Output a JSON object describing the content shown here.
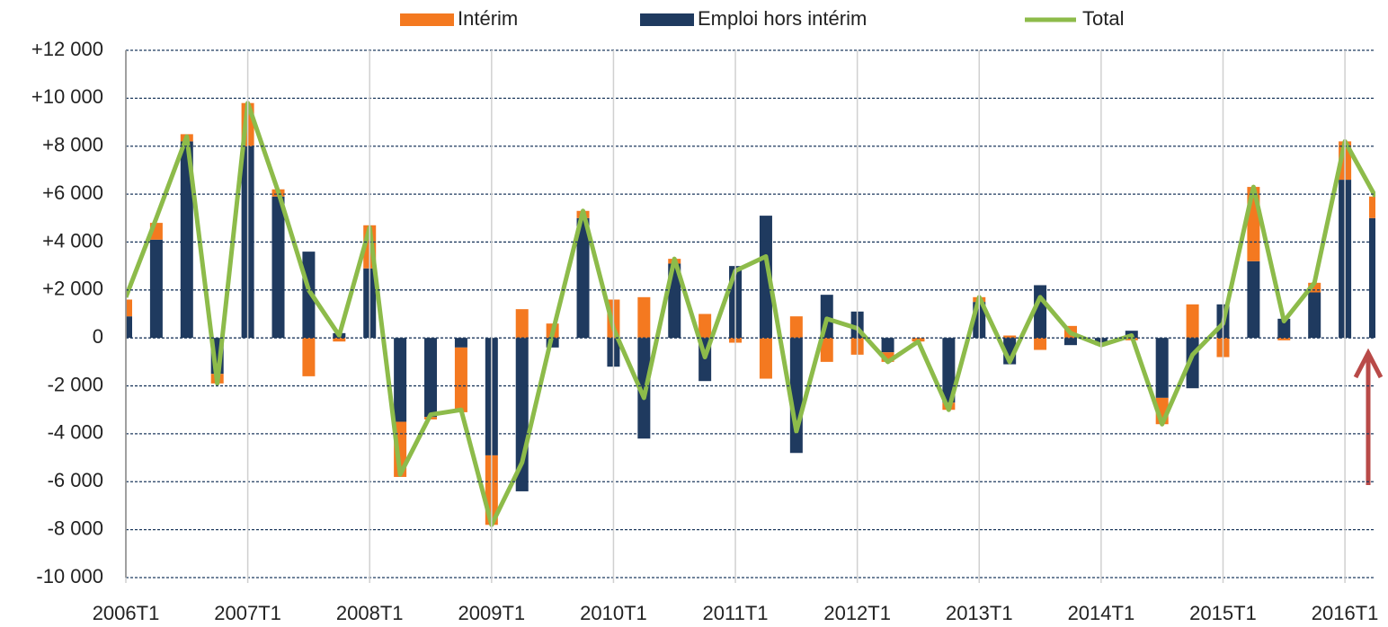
{
  "chart_data": {
    "type": "bar",
    "categories": [
      "2006T1",
      null,
      null,
      null,
      "2007T1",
      null,
      null,
      null,
      "2008T1",
      null,
      null,
      null,
      "2009T1",
      null,
      null,
      null,
      "2010T1",
      null,
      null,
      null,
      "2011T1",
      null,
      null,
      null,
      "2012T1",
      null,
      null,
      null,
      "2013T1",
      null,
      null,
      null,
      "2014T1",
      null,
      null,
      null,
      "2015T1",
      null,
      null,
      null,
      "2016T1",
      null
    ],
    "series": [
      {
        "name": "Intérim",
        "type": "bar",
        "color": "#f47920",
        "values": [
          700,
          700,
          300,
          -400,
          1800,
          300,
          -1600,
          -150,
          1800,
          -2300,
          -100,
          -2700,
          -2900,
          1200,
          600,
          300,
          1600,
          1700,
          200,
          1000,
          -200,
          -1700,
          900,
          -1000,
          -700,
          -400,
          -150,
          -300,
          200,
          100,
          -500,
          500,
          0,
          -100,
          -1100,
          1400,
          -800,
          3100,
          -100,
          400,
          1600,
          900
        ]
      },
      {
        "name": "Emploi hors intérim",
        "type": "bar",
        "color": "#1f3a5f",
        "values": [
          900,
          4100,
          8200,
          -1500,
          8000,
          5900,
          3600,
          200,
          2900,
          -3500,
          -3300,
          -400,
          -4900,
          -6400,
          -400,
          5000,
          -1200,
          -4200,
          3100,
          -1800,
          3000,
          5100,
          -4800,
          1800,
          1100,
          -600,
          0,
          -2700,
          1500,
          -1100,
          2200,
          -300,
          -300,
          300,
          -2500,
          -2100,
          1400,
          3200,
          800,
          1900,
          6600,
          5000
        ]
      },
      {
        "name": "Total",
        "type": "line",
        "color": "#8dbb4a",
        "values": [
          1700,
          5000,
          8400,
          -1900,
          9800,
          6100,
          2000,
          100,
          4600,
          -5700,
          -3200,
          -3000,
          -7800,
          -5200,
          200,
          5300,
          400,
          -2500,
          3300,
          -800,
          2800,
          3400,
          -3900,
          800,
          400,
          -1000,
          -150,
          -3000,
          1700,
          -1000,
          1700,
          200,
          -300,
          100,
          -3600,
          -700,
          600,
          6300,
          700,
          2300,
          8200,
          5900
        ]
      }
    ],
    "ylim": [
      -10000,
      12000
    ],
    "yticks": [
      {
        "value": 12000,
        "label": "+12 000"
      },
      {
        "value": 10000,
        "label": "+10 000"
      },
      {
        "value": 8000,
        "label": "+8 000"
      },
      {
        "value": 6000,
        "label": "+6 000"
      },
      {
        "value": 4000,
        "label": "+4 000"
      },
      {
        "value": 2000,
        "label": "+2 000"
      },
      0,
      {
        "value": -2000,
        "label": "-2 000"
      },
      {
        "value": -4000,
        "label": "-4 000"
      },
      {
        "value": -6000,
        "label": "-6 000"
      },
      {
        "value": -8000,
        "label": "-8 000"
      },
      {
        "value": -10000,
        "label": "-10 000"
      }
    ],
    "grid": true,
    "legend": "top"
  }
}
